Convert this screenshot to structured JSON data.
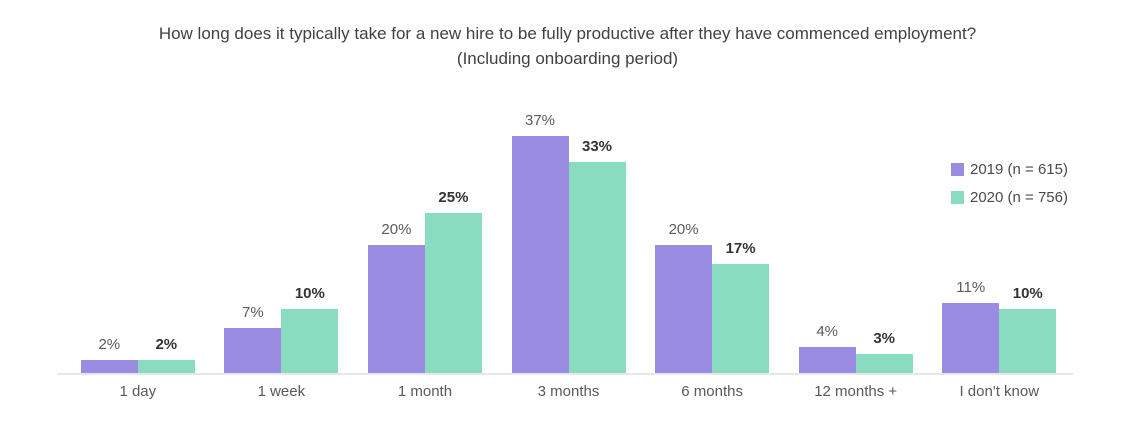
{
  "title": {
    "line1": "How long does it typically take for a new hire to be fully productive after they have commenced employment?",
    "line2": "(Including onboarding period)"
  },
  "chart_data": {
    "type": "bar",
    "title": "How long does it typically take for a new hire to be fully productive after they have commenced employment? (Including onboarding period)",
    "categories": [
      "1 day",
      "1 week",
      "1 month",
      "3 months",
      "6 months",
      "12 months +",
      "I don't know"
    ],
    "series": [
      {
        "year": "2019",
        "name": "2019 (n = 615)",
        "color": "#9a8ce2",
        "values": [
          2,
          7,
          20,
          37,
          20,
          4,
          11
        ]
      },
      {
        "year": "2020",
        "name": "2020 (n = 756)",
        "color": "#89dcc0",
        "values": [
          2,
          10,
          25,
          33,
          17,
          3,
          10
        ]
      }
    ],
    "value_suffix": "%",
    "data_labels": true,
    "xlabel": "",
    "ylabel": "",
    "ylim": [
      0,
      40
    ],
    "grid": false,
    "y_axis_visible": false,
    "legend_position": "right"
  }
}
